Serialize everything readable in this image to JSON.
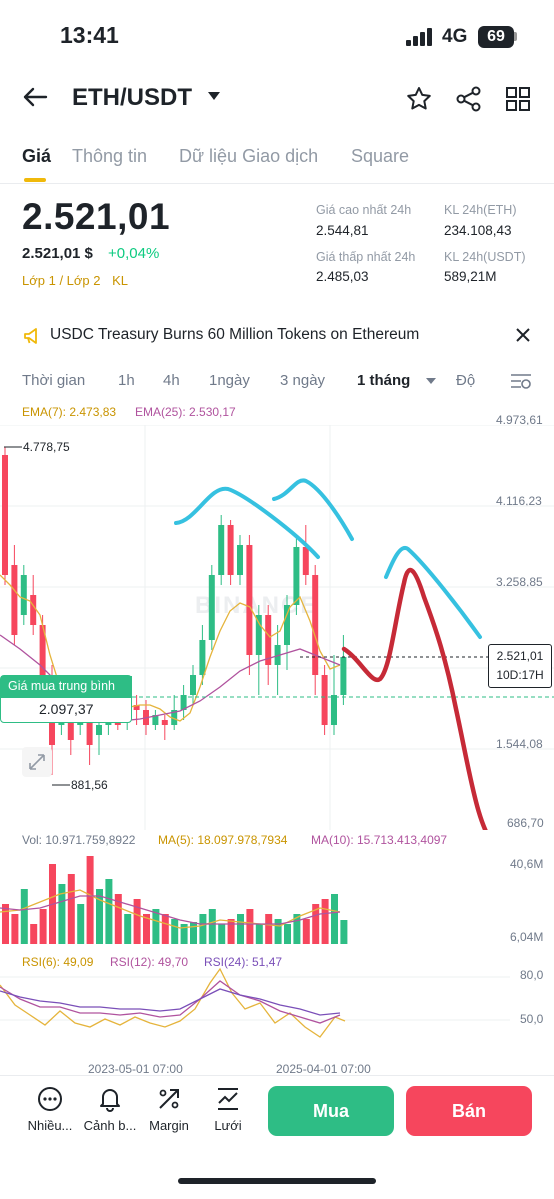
{
  "status": {
    "time": "13:41",
    "network": "4G",
    "battery": "69"
  },
  "header": {
    "pair": "ETH/USDT"
  },
  "tabs": [
    "Giá",
    "Thông tin",
    "Dữ liệu Giao dịch",
    "Square"
  ],
  "price": {
    "main": "2.521,01",
    "usd": "2.521,01 $",
    "change": "+0,04%",
    "layer": "Lớp 1 / Lớp 2",
    "kl": "KL"
  },
  "stats": {
    "high_label": "Giá cao nhất 24h",
    "high": "2.544,81",
    "low_label": "Giá thấp nhất 24h",
    "low": "2.485,03",
    "vol_eth_label": "KL 24h(ETH)",
    "vol_eth": "234.108,43",
    "vol_usdt_label": "KL 24h(USDT)",
    "vol_usdt": "589,21M"
  },
  "news": {
    "text": "USDC Treasury Burns 60 Million Tokens on Ethereum"
  },
  "timeframes": [
    "Thời gian",
    "1h",
    "4h",
    "1ngày",
    "3 ngày",
    "1 tháng",
    "Độ"
  ],
  "indicators": {
    "ema7": "EMA(7): 2.473,83",
    "ema25": "EMA(25): 2.530,17",
    "vol": "Vol: 10.971.759,8922",
    "ma5": "MA(5): 18.097.978,7934",
    "ma10": "MA(10): 15.713.413,4097",
    "rsi6": "RSI(6): 49,09",
    "rsi12": "RSI(12): 49,70",
    "rsi24": "RSI(24): 51,47"
  },
  "axis": {
    "price": [
      "4.973,61",
      "4.116,23",
      "3.258,85",
      "1.544,08",
      "686,70"
    ],
    "vol": [
      "40,6M",
      "6,04M"
    ],
    "rsi": [
      "80,0",
      "50,0"
    ],
    "dates": [
      "2023-05-01 07:00",
      "2025-04-01 07:00"
    ],
    "high_mark": "4.778,75",
    "low_mark": "881,56"
  },
  "avg_buy": {
    "label": "Giá mua trung bình",
    "value": "2.097,37"
  },
  "current_tag": {
    "price": "2.521,01",
    "countdown": "10D:17H"
  },
  "watermark": "BINANCE",
  "colors": {
    "up": "#2ebd85",
    "down": "#f6465d",
    "accent": "#f0b90b",
    "annot_red": "#c62a37",
    "annot_cyan": "#36c1e0"
  },
  "bottom_nav": [
    "Nhiều...",
    "Cảnh b...",
    "Margin",
    "Lưới"
  ],
  "actions": {
    "buy": "Mua",
    "sell": "Bán"
  }
}
